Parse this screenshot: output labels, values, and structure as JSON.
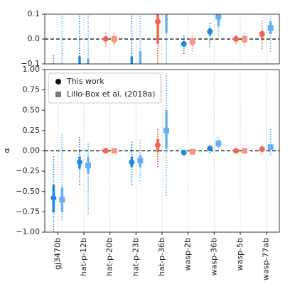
{
  "chart_data": {
    "type": "errorbar",
    "ylabel": "α",
    "categories": [
      "gj3470b",
      "hat-p-12b",
      "hat-p-20b",
      "hat-p-23b",
      "hat-p-36b",
      "wasp-2b",
      "wasp-36b",
      "wasp-5b",
      "wasp-77ab"
    ],
    "series": [
      {
        "name": "This work",
        "marker": "circle",
        "legend_color": "#111111",
        "colors": [
          "#1e88e5",
          "#1e88e5",
          "#f4624a",
          "#1e88e5",
          "#f4624a",
          "#1e88e5",
          "#1e88e5",
          "#f4624a",
          "#f4624a"
        ],
        "values": [
          -0.58,
          -0.14,
          0.0,
          -0.14,
          0.07,
          -0.02,
          0.03,
          0.0,
          0.02
        ],
        "inner_low": [
          -0.76,
          -0.22,
          -0.01,
          -0.2,
          -0.02,
          -0.03,
          0.015,
          -0.01,
          0.005
        ],
        "inner_high": [
          -0.42,
          -0.07,
          0.01,
          -0.07,
          0.15,
          -0.01,
          0.045,
          0.01,
          0.035
        ],
        "outer_low": [
          -1.0,
          -0.42,
          -0.03,
          -0.42,
          -0.2,
          -0.06,
          -0.03,
          -0.02,
          -0.04
        ],
        "outer_high": [
          -0.06,
          0.17,
          0.03,
          0.12,
          0.27,
          0.02,
          0.07,
          0.02,
          0.08
        ]
      },
      {
        "name": "Lillo-Box et al. (2018a)",
        "marker": "square",
        "legend_color": "#777777",
        "colors": [
          "#64b0f2",
          "#64b0f2",
          "#f59585",
          "#64b0f2",
          "#64b0f2",
          "#f59585",
          "#64b0f2",
          "#f59585",
          "#64b0f2"
        ],
        "values": [
          -0.6,
          -0.18,
          0.0,
          -0.12,
          0.25,
          -0.01,
          0.09,
          0.0,
          0.045
        ],
        "inner_low": [
          -0.75,
          -0.28,
          -0.015,
          -0.2,
          0.025,
          -0.025,
          0.05,
          -0.015,
          0.02
        ],
        "inner_high": [
          -0.45,
          -0.08,
          0.015,
          -0.05,
          0.5,
          0.005,
          0.13,
          0.015,
          0.07
        ],
        "outer_low": [
          -0.85,
          -0.78,
          -0.03,
          -0.37,
          -0.55,
          -0.05,
          0.0,
          -0.03,
          -0.05
        ],
        "outer_high": [
          0.2,
          0.1,
          0.03,
          0.15,
          0.95,
          0.03,
          0.18,
          0.03,
          0.28
        ]
      }
    ],
    "panels": [
      {
        "ylim": [
          -0.1,
          0.1
        ],
        "yticks": [
          {
            "value": -0.1,
            "label": "−0.1"
          },
          {
            "value": 0,
            "label": "0.0"
          },
          {
            "value": 0.1,
            "label": "0.1"
          }
        ]
      },
      {
        "ylim": [
          -1,
          1
        ],
        "yticks": [
          {
            "value": -1,
            "label": "−1.00"
          },
          {
            "value": -0.75,
            "label": "−0.75"
          },
          {
            "value": -0.5,
            "label": "−0.50"
          },
          {
            "value": -0.25,
            "label": "−0.25"
          },
          {
            "value": 0,
            "label": "0.00"
          },
          {
            "value": 0.25,
            "label": "0.25"
          },
          {
            "value": 0.5,
            "label": "0.50"
          },
          {
            "value": 0.75,
            "label": "0.75"
          },
          {
            "value": 1,
            "label": "1.00"
          }
        ]
      }
    ],
    "reference_line": 0,
    "grid": true,
    "legend": "upper left"
  }
}
